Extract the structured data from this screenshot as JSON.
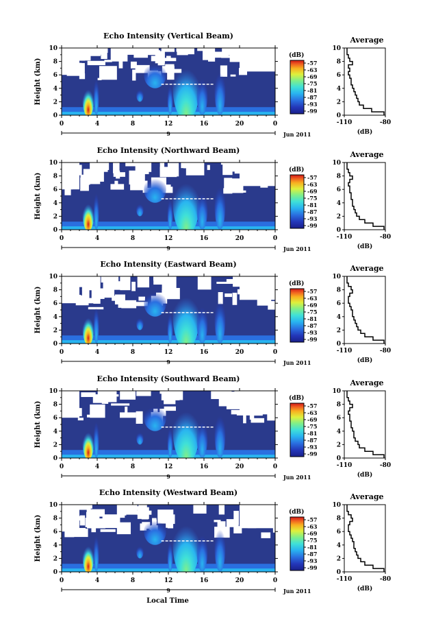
{
  "figure": {
    "xlabel": "Local Time"
  },
  "colors": {
    "background_blue": "#2a3a8c",
    "missing": "#ffffff",
    "colormap": [
      "#1a1f8a",
      "#2336b8",
      "#2a6fe0",
      "#29b4f0",
      "#3fe0d8",
      "#7fef8a",
      "#dff03c",
      "#f8b020",
      "#f06020",
      "#d01818"
    ]
  },
  "chart_data": [
    {
      "type": "heatmap",
      "title": "Echo Intensity (Vertical Beam)",
      "ylabel": "Height (km)",
      "ylim": [
        0,
        10
      ],
      "yticks": [
        "0",
        "2",
        "4",
        "6",
        "8",
        "10"
      ],
      "xlim": [
        0,
        24
      ],
      "xticks": [
        "0",
        "4",
        "8",
        "12",
        "16",
        "20",
        "0"
      ],
      "date_label": "Jun 2011",
      "day_label": "9",
      "colorbar": {
        "unit": "(dB)",
        "ticks": [
          "-57",
          "-63",
          "-69",
          "-75",
          "-81",
          "-87",
          "-93",
          "-99"
        ]
      },
      "profile": {
        "title": "Average",
        "xlabel": "(dB)",
        "xlim": [
          -110,
          -80
        ],
        "xticks": [
          "-110",
          "-80"
        ],
        "ylim": [
          0,
          10
        ],
        "yticks": [
          "0",
          "2",
          "4",
          "6",
          "8",
          "10"
        ],
        "heights": [
          0,
          0.5,
          1,
          1.5,
          2,
          2.5,
          3,
          3.5,
          4,
          4.5,
          5,
          5.5,
          6,
          6.5,
          7,
          7.5,
          8,
          8.5,
          9,
          9.5,
          10
        ],
        "values": [
          -81,
          -90,
          -96,
          -99,
          -100,
          -101,
          -102,
          -103,
          -104,
          -105,
          -105,
          -106,
          -107,
          -106,
          -107,
          -104,
          -106,
          -107,
          -108,
          -108,
          -108
        ]
      }
    },
    {
      "type": "heatmap",
      "title": "Echo Intensity (Northward Beam)",
      "ylabel": "Height (km)",
      "ylim": [
        0,
        10
      ],
      "yticks": [
        "0",
        "2",
        "4",
        "6",
        "8",
        "10"
      ],
      "xlim": [
        0,
        24
      ],
      "xticks": [
        "0",
        "4",
        "8",
        "12",
        "16",
        "20",
        "0"
      ],
      "date_label": "Jun 2011",
      "day_label": "9",
      "colorbar": {
        "unit": "(dB)",
        "ticks": [
          "-57",
          "-63",
          "-69",
          "-75",
          "-81",
          "-87",
          "-93",
          "-99"
        ]
      },
      "profile": {
        "title": "Average",
        "xlabel": "(dB)",
        "xlim": [
          -110,
          -80
        ],
        "xticks": [
          "-110",
          "-80"
        ],
        "ylim": [
          0,
          10
        ],
        "yticks": [
          "0",
          "2",
          "4",
          "6",
          "8",
          "10"
        ],
        "heights": [
          0,
          0.5,
          1,
          1.5,
          2,
          2.5,
          3,
          3.5,
          4,
          4.5,
          5,
          5.5,
          6,
          6.5,
          7,
          7.5,
          8,
          8.5,
          9,
          9.5,
          10
        ],
        "values": [
          -81,
          -89,
          -95,
          -99,
          -101,
          -102,
          -103,
          -104,
          -104,
          -105,
          -105,
          -106,
          -106,
          -107,
          -106,
          -104,
          -106,
          -107,
          -108,
          -108,
          -108
        ]
      }
    },
    {
      "type": "heatmap",
      "title": "Echo Intensity (Eastward Beam)",
      "ylabel": "Height (km)",
      "ylim": [
        0,
        10
      ],
      "yticks": [
        "0",
        "2",
        "4",
        "6",
        "8",
        "10"
      ],
      "xlim": [
        0,
        24
      ],
      "xticks": [
        "0",
        "4",
        "8",
        "12",
        "16",
        "20",
        "0"
      ],
      "date_label": "Jun 2011",
      "day_label": "9",
      "colorbar": {
        "unit": "(dB)",
        "ticks": [
          "-57",
          "-63",
          "-69",
          "-75",
          "-81",
          "-87",
          "-93",
          "-99"
        ]
      },
      "profile": {
        "title": "Average",
        "xlabel": "(dB)",
        "xlim": [
          -110,
          -80
        ],
        "xticks": [
          "-110",
          "-80"
        ],
        "ylim": [
          0,
          10
        ],
        "yticks": [
          "0",
          "2",
          "4",
          "6",
          "8",
          "10"
        ],
        "heights": [
          0,
          0.5,
          1,
          1.5,
          2,
          2.5,
          3,
          3.5,
          4,
          4.5,
          5,
          5.5,
          6,
          6.5,
          7,
          7.5,
          8,
          8.5,
          9,
          9.5,
          10
        ],
        "values": [
          -81,
          -89,
          -95,
          -98,
          -100,
          -101,
          -102,
          -103,
          -104,
          -104,
          -105,
          -106,
          -107,
          -107,
          -106,
          -104,
          -105,
          -107,
          -108,
          -108,
          -108
        ]
      }
    },
    {
      "type": "heatmap",
      "title": "Echo Intensity (Southward Beam)",
      "ylabel": "Height (km)",
      "ylim": [
        0,
        10
      ],
      "yticks": [
        "0",
        "2",
        "4",
        "6",
        "8",
        "10"
      ],
      "xlim": [
        0,
        24
      ],
      "xticks": [
        "0",
        "4",
        "8",
        "12",
        "16",
        "20",
        "0"
      ],
      "date_label": "Jun 2011",
      "day_label": "9",
      "colorbar": {
        "unit": "(dB)",
        "ticks": [
          "-57",
          "-63",
          "-69",
          "-75",
          "-81",
          "-87",
          "-93",
          "-99"
        ]
      },
      "profile": {
        "title": "Average",
        "xlabel": "(dB)",
        "xlim": [
          -110,
          -80
        ],
        "xticks": [
          "-110",
          "-80"
        ],
        "ylim": [
          0,
          10
        ],
        "yticks": [
          "0",
          "2",
          "4",
          "6",
          "8",
          "10"
        ],
        "heights": [
          0,
          0.5,
          1,
          1.5,
          2,
          2.5,
          3,
          3.5,
          4,
          4.5,
          5,
          5.5,
          6,
          6.5,
          7,
          7.5,
          8,
          8.5,
          9,
          9.5,
          10
        ],
        "values": [
          -81,
          -89,
          -95,
          -99,
          -100,
          -102,
          -103,
          -103,
          -104,
          -105,
          -105,
          -106,
          -106,
          -107,
          -106,
          -104,
          -106,
          -107,
          -108,
          -108,
          -108
        ]
      }
    },
    {
      "type": "heatmap",
      "title": "Echo Intensity (Westward Beam)",
      "ylabel": "Height (km)",
      "ylim": [
        0,
        10
      ],
      "yticks": [
        "0",
        "2",
        "4",
        "6",
        "8",
        "10"
      ],
      "xlim": [
        0,
        24
      ],
      "xticks": [
        "0",
        "4",
        "8",
        "12",
        "16",
        "20",
        "0"
      ],
      "date_label": "Jun 2011",
      "day_label": "9",
      "colorbar": {
        "unit": "(dB)",
        "ticks": [
          "-57",
          "-63",
          "-69",
          "-75",
          "-81",
          "-87",
          "-93",
          "-99"
        ]
      },
      "profile": {
        "title": "Average",
        "xlabel": "(dB)",
        "xlim": [
          -110,
          -80
        ],
        "xticks": [
          "-110",
          "-80"
        ],
        "ylim": [
          0,
          10
        ],
        "yticks": [
          "0",
          "2",
          "4",
          "6",
          "8",
          "10"
        ],
        "heights": [
          0,
          0.5,
          1,
          1.5,
          2,
          2.5,
          3,
          3.5,
          4,
          4.5,
          5,
          5.5,
          6,
          6.5,
          7,
          7.5,
          8,
          8.5,
          9,
          9.5,
          10
        ],
        "values": [
          -81,
          -89,
          -95,
          -98,
          -100,
          -101,
          -102,
          -103,
          -103,
          -104,
          -105,
          -106,
          -107,
          -107,
          -106,
          -104,
          -105,
          -107,
          -108,
          -108,
          -108
        ]
      }
    }
  ]
}
